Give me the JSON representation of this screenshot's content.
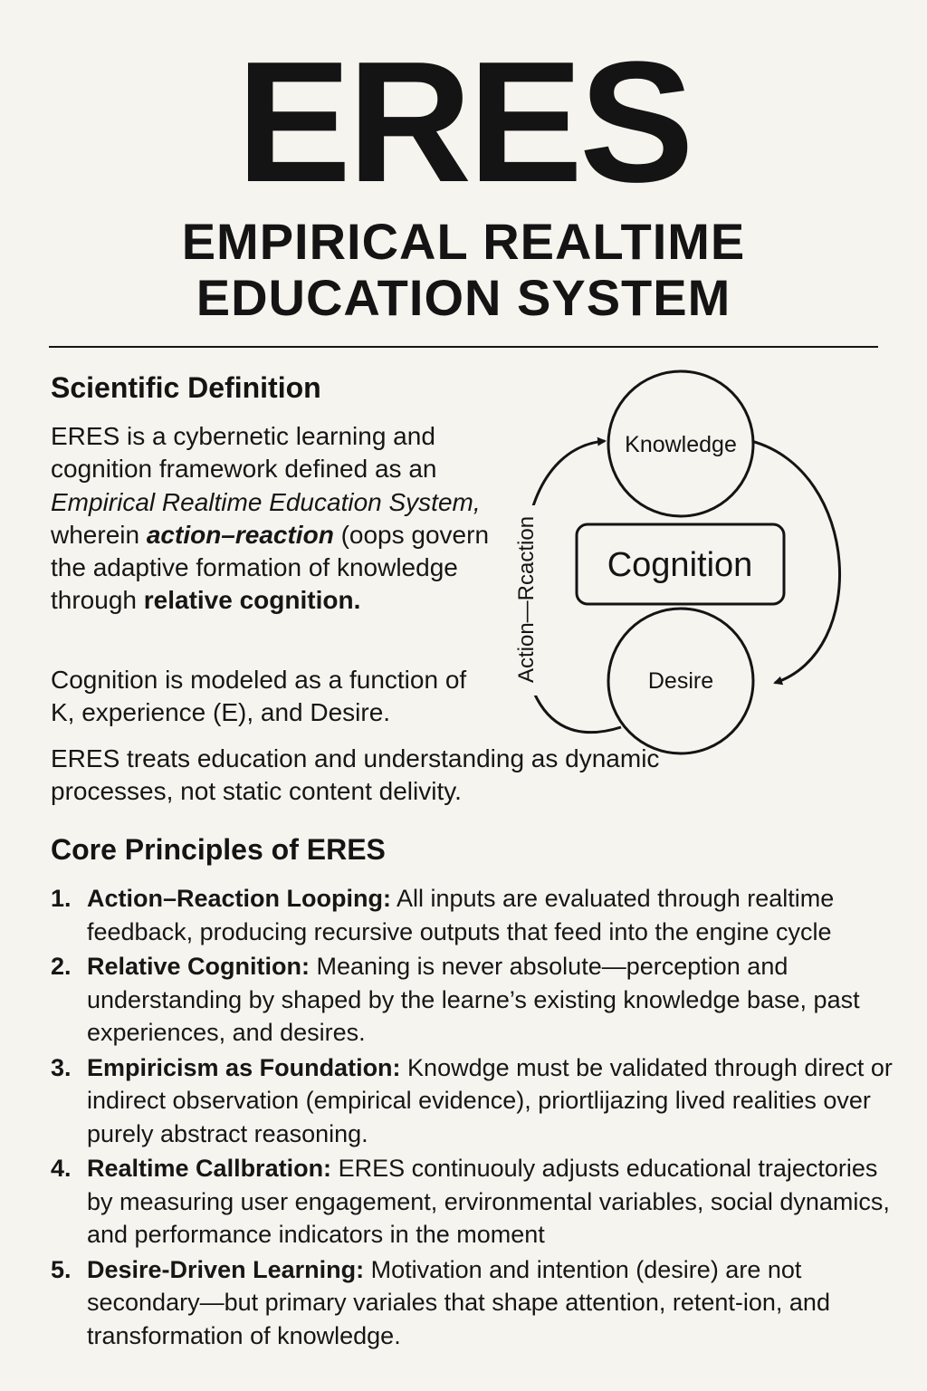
{
  "header": {
    "acronym": "ERES",
    "subtitle_line1": "EMPIRICAL REALTIME",
    "subtitle_line2": "EDUCATION SYSTEM"
  },
  "definition": {
    "heading": "Scientific Definition",
    "p1_a": "ERES is a cybernetic learning and cognition framework defined as an ",
    "p1_italic": "Empirical Realtime Education System,",
    "p1_b": " wherein ",
    "p1_bold_italic": "action–reaction",
    "p1_c": " (oops govern the adaptive formation of knowledge through ",
    "p1_bold": "relative cognition.",
    "p2": "Cognition is modeled as a function of K, experience (E), and Desire.",
    "p3": "ERES treats education and understanding as dynamic processes, not static content delivity."
  },
  "diagram": {
    "node_top": "Knowledge",
    "node_center": "Cognition",
    "node_bottom": "Desire",
    "loop_label": "Action—Rcaction"
  },
  "principles": {
    "heading": "Core Principles of ERES",
    "items": [
      {
        "num": "1.",
        "term": "Action–Reaction Looping:",
        "text": " All inputs are evaluated through realtime feedback, producing recursive outputs that feed into the engine cycle"
      },
      {
        "num": "2.",
        "term": "Relative Cognition:",
        "text": " Meaning is never absolute—perception and understanding by shaped by the learne’s existing knowledge base, past experiences, and desires."
      },
      {
        "num": "3.",
        "term": "Empiricism as Foundation:",
        "text": " Knowdge must be validated through direct or indirect observation (empirical evidence), priortlĳazing lived realities over purely abstract reasoning."
      },
      {
        "num": "4.",
        "term": "Realtime Callbration:",
        "text": " ERES continuouly adjusts educational trajectories by measuring user engagement, ervironmental variables, social dynamics, and performance indicators in the moment"
      },
      {
        "num": "5.",
        "term": "Desire-Driven Learning:",
        "text": " Motivation and intention (desire) are not secondary—but primary variales that shape attention, retent-ion, and transformation of knowledge."
      }
    ]
  }
}
